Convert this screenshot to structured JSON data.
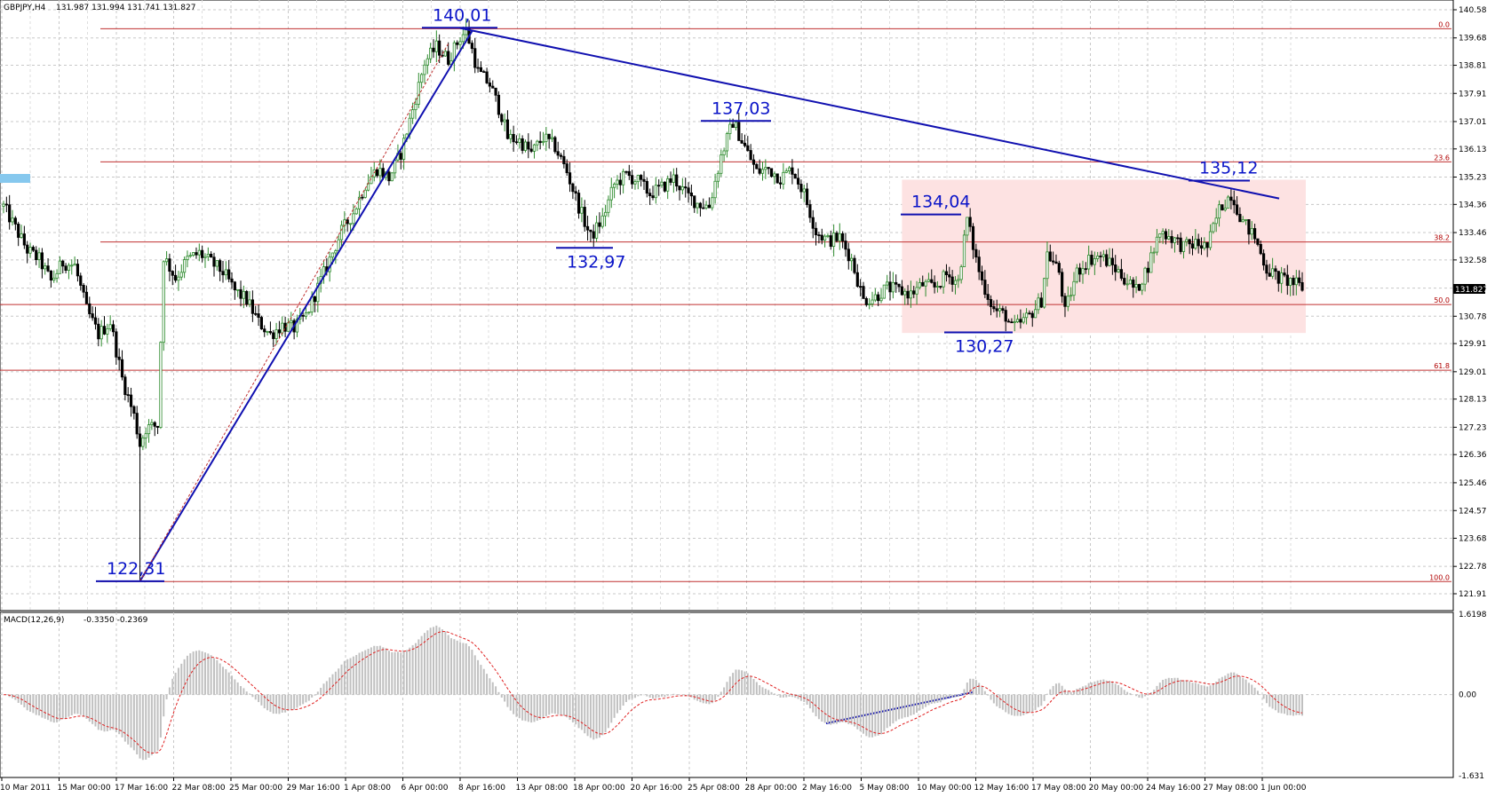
{
  "header": {
    "symbol": "GBPJPY,H4",
    "ohlc": "131.987 131.994 131.741 131.827"
  },
  "colors": {
    "bull": "#2e8b2e",
    "bear": "#000000",
    "fib": "#c03030",
    "trend": "#1010b0",
    "zone": "#fde2e2",
    "macd_hist": "#c0c0c0",
    "macd_signal": "#e02020",
    "annotation": "#0a14c8"
  },
  "chart_data": [
    {
      "type": "candlestick",
      "title": "GBPJPY,H4",
      "y_ticks": [
        "140.585",
        "139.685",
        "138.810",
        "137.910",
        "137.010",
        "136.135",
        "135.235",
        "134.360",
        "133.460",
        "132.585",
        "131.685",
        "130.785",
        "129.910",
        "129.010",
        "128.135",
        "127.235",
        "126.360",
        "125.460",
        "124.570",
        "123.685",
        "122.785",
        "121.910"
      ],
      "ylim": [
        121.91,
        140.585
      ],
      "x_ticks": [
        "10 Mar 2011",
        "15 Mar 00:00",
        "17 Mar 16:00",
        "22 Mar 08:00",
        "25 Mar 00:00",
        "29 Mar 16:00",
        "1 Apr 08:00",
        "6 Apr 00:00",
        "8 Apr 16:00",
        "13 Apr 08:00",
        "18 Apr 00:00",
        "20 Apr 16:00",
        "25 Apr 08:00",
        "28 Apr 00:00",
        "2 May 16:00",
        "5 May 08:00",
        "10 May 00:00",
        "12 May 16:00",
        "17 May 08:00",
        "20 May 00:00",
        "24 May 16:00",
        "27 May 08:00",
        "1 Jun 00:00"
      ],
      "current_price": "131.827",
      "fib_levels": [
        {
          "label": "0.0",
          "price": 139.98
        },
        {
          "label": "23.6",
          "price": 135.72
        },
        {
          "label": "38.2",
          "price": 133.16
        },
        {
          "label": "50.0",
          "price": 131.16
        },
        {
          "label": "61.8",
          "price": 129.06
        },
        {
          "label": "100.0",
          "price": 122.3
        }
      ],
      "price_labels": [
        {
          "text": "140,01",
          "price": 140.01
        },
        {
          "text": "137,03",
          "price": 137.03
        },
        {
          "text": "132,97",
          "price": 132.97
        },
        {
          "text": "134,04",
          "price": 134.04
        },
        {
          "text": "135,12",
          "price": 135.12
        },
        {
          "text": "130,27",
          "price": 130.27
        },
        {
          "text": "122,31",
          "price": 122.31
        }
      ],
      "range_zone": {
        "top": 135.15,
        "bottom": 130.25
      },
      "path": [
        [
          0,
          134.3
        ],
        [
          4,
          133.6
        ],
        [
          8,
          132.9
        ],
        [
          12,
          132.6
        ],
        [
          16,
          131.9
        ],
        [
          20,
          132.5
        ],
        [
          24,
          132.4
        ],
        [
          28,
          131.0
        ],
        [
          32,
          130.2
        ],
        [
          36,
          130.6
        ],
        [
          40,
          128.8
        ],
        [
          44,
          127.6
        ],
        [
          46,
          126.7
        ],
        [
          48,
          127.2
        ],
        [
          52,
          127.3
        ],
        [
          54,
          132.7
        ],
        [
          58,
          132.0
        ],
        [
          62,
          132.6
        ],
        [
          66,
          132.8
        ],
        [
          70,
          132.5
        ],
        [
          74,
          132.2
        ],
        [
          78,
          131.6
        ],
        [
          82,
          131.3
        ],
        [
          86,
          130.6
        ],
        [
          90,
          130.2
        ],
        [
          94,
          130.5
        ],
        [
          98,
          130.4
        ],
        [
          102,
          130.8
        ],
        [
          106,
          131.7
        ],
        [
          110,
          132.6
        ],
        [
          114,
          133.5
        ],
        [
          118,
          134.1
        ],
        [
          122,
          135.0
        ],
        [
          126,
          135.5
        ],
        [
          130,
          135.2
        ],
        [
          134,
          136.0
        ],
        [
          138,
          137.4
        ],
        [
          142,
          138.9
        ],
        [
          146,
          139.4
        ],
        [
          150,
          139.0
        ],
        [
          154,
          139.7
        ],
        [
          156,
          139.9
        ],
        [
          158,
          139.3
        ],
        [
          160,
          138.6
        ],
        [
          164,
          138.2
        ],
        [
          168,
          137.2
        ],
        [
          170,
          136.5
        ],
        [
          174,
          136.4
        ],
        [
          178,
          136.0
        ],
        [
          182,
          136.5
        ],
        [
          186,
          136.2
        ],
        [
          190,
          135.4
        ],
        [
          194,
          134.3
        ],
        [
          198,
          133.3
        ],
        [
          202,
          133.9
        ],
        [
          206,
          135.0
        ],
        [
          210,
          135.3
        ],
        [
          214,
          135.1
        ],
        [
          218,
          134.7
        ],
        [
          222,
          134.9
        ],
        [
          226,
          135.2
        ],
        [
          230,
          134.7
        ],
        [
          234,
          134.4
        ],
        [
          238,
          134.3
        ],
        [
          242,
          135.9
        ],
        [
          246,
          137.0
        ],
        [
          250,
          136.2
        ],
        [
          254,
          135.4
        ],
        [
          258,
          135.5
        ],
        [
          262,
          135.2
        ],
        [
          266,
          135.5
        ],
        [
          270,
          134.7
        ],
        [
          274,
          133.5
        ],
        [
          278,
          133.2
        ],
        [
          282,
          133.3
        ],
        [
          286,
          132.6
        ],
        [
          290,
          131.3
        ],
        [
          294,
          131.4
        ],
        [
          298,
          131.7
        ],
        [
          302,
          131.6
        ],
        [
          306,
          131.5
        ],
        [
          310,
          131.8
        ],
        [
          314,
          131.7
        ],
        [
          318,
          132.1
        ],
        [
          322,
          131.9
        ],
        [
          325,
          133.9
        ],
        [
          328,
          132.6
        ],
        [
          330,
          131.9
        ],
        [
          334,
          131.0
        ],
        [
          338,
          130.8
        ],
        [
          340,
          130.4
        ],
        [
          342,
          130.5
        ],
        [
          346,
          130.8
        ],
        [
          350,
          131.3
        ],
        [
          352,
          132.8
        ],
        [
          356,
          132.2
        ],
        [
          358,
          130.9
        ],
        [
          362,
          132.2
        ],
        [
          366,
          132.6
        ],
        [
          370,
          132.7
        ],
        [
          374,
          132.4
        ],
        [
          378,
          132.0
        ],
        [
          382,
          131.6
        ],
        [
          386,
          132.4
        ],
        [
          390,
          133.5
        ],
        [
          394,
          133.3
        ],
        [
          398,
          133.0
        ],
        [
          402,
          133.1
        ],
        [
          406,
          133.0
        ],
        [
          410,
          134.2
        ],
        [
          414,
          134.7
        ],
        [
          418,
          133.8
        ],
        [
          422,
          133.3
        ],
        [
          426,
          132.3
        ],
        [
          430,
          132.0
        ],
        [
          434,
          131.9
        ],
        [
          438,
          131.7
        ]
      ]
    },
    {
      "type": "bar",
      "title": "MACD(12,26,9)",
      "values_text": "-0.3350 -0.2369",
      "y_ticks": [
        "1.6198",
        "0.00",
        "-1.631"
      ],
      "ylim": [
        -1.631,
        1.6198
      ]
    }
  ]
}
